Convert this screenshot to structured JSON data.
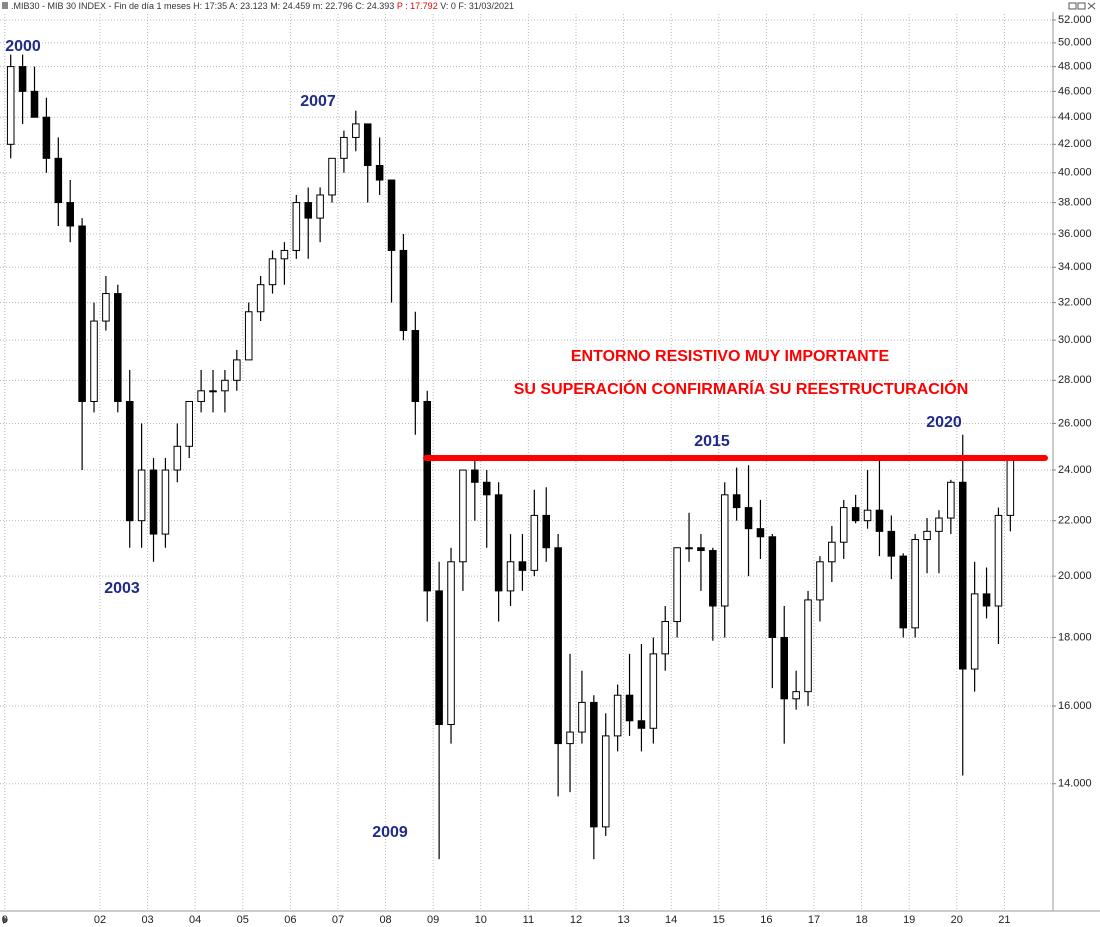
{
  "header": {
    "parts": [
      ".MIB30 - MIB 30 INDEX - Fin de día 1 meses",
      "H: 17:35",
      "A: 23.123",
      "M: 24.459",
      "m: 22.796",
      "C: 24.393",
      "P : 17.792",
      "V: 0",
      "F: 31/03/2021"
    ]
  },
  "chart_data": {
    "type": "candlestick",
    "log_scale": true,
    "grid": true,
    "up_color": "#ffffff",
    "down_color": "#000000",
    "line_color": "#000000",
    "x": [
      2000,
      2000.25,
      2000.5,
      2000.75,
      2001,
      2001.25,
      2001.5,
      2001.75,
      2002,
      2002.25,
      2002.5,
      2002.75,
      2003,
      2003.25,
      2003.5,
      2003.75,
      2004,
      2004.25,
      2004.5,
      2004.75,
      2005,
      2005.25,
      2005.5,
      2005.75,
      2006,
      2006.25,
      2006.5,
      2006.75,
      2007,
      2007.25,
      2007.5,
      2007.75,
      2008,
      2008.25,
      2008.5,
      2008.75,
      2009,
      2009.25,
      2009.5,
      2009.75,
      2010,
      2010.25,
      2010.5,
      2010.75,
      2011,
      2011.25,
      2011.5,
      2011.75,
      2012,
      2012.25,
      2012.5,
      2012.75,
      2013,
      2013.25,
      2013.5,
      2013.75,
      2014,
      2014.25,
      2014.5,
      2014.75,
      2015,
      2015.25,
      2015.5,
      2015.75,
      2016,
      2016.25,
      2016.5,
      2016.75,
      2017,
      2017.25,
      2017.5,
      2017.75,
      2018,
      2018.25,
      2018.5,
      2018.75,
      2019,
      2019.25,
      2019.5,
      2019.75,
      2020,
      2020.25,
      2020.5,
      2020.75,
      2021
    ],
    "open": [
      42000,
      48000,
      46000,
      44000,
      41000,
      38000,
      36500,
      27000,
      31000,
      32500,
      27000,
      22000,
      24000,
      21500,
      24000,
      25000,
      27000,
      27500,
      27500,
      28000,
      29000,
      31500,
      33000,
      34500,
      35000,
      38000,
      37000,
      38500,
      41000,
      42500,
      43500,
      40500,
      39500,
      35000,
      30500,
      27000,
      19500,
      15500,
      20500,
      24000,
      23500,
      23000,
      19500,
      20500,
      20200,
      22200,
      21000,
      15000,
      15300,
      16100,
      13000,
      15200,
      16300,
      15600,
      15400,
      17500,
      18500,
      21000,
      21000,
      20900,
      19000,
      23000,
      22500,
      21700,
      21400,
      18000,
      16200,
      16400,
      19200,
      20500,
      21200,
      22500,
      22000,
      22400,
      21600,
      20700,
      18300,
      21300,
      21600,
      22100,
      23500,
      17050,
      19400,
      19000,
      22200
    ],
    "high": [
      49000,
      49000,
      48000,
      45500,
      42500,
      39500,
      37000,
      32000,
      33500,
      33000,
      28500,
      26000,
      24500,
      24500,
      26000,
      27000,
      28500,
      28500,
      28500,
      29500,
      32000,
      33500,
      35000,
      35500,
      38500,
      39000,
      39000,
      41000,
      43000,
      44500,
      43500,
      42500,
      39500,
      36000,
      31500,
      27500,
      20500,
      21000,
      24000,
      24500,
      24000,
      23500,
      21500,
      21500,
      23200,
      23300,
      21500,
      17500,
      17000,
      16300,
      15800,
      16600,
      17500,
      17800,
      18000,
      19000,
      21000,
      22300,
      21500,
      21000,
      23500,
      24100,
      24200,
      22800,
      21500,
      19000,
      17000,
      19500,
      20700,
      21800,
      22800,
      23000,
      24000,
      24500,
      22200,
      20800,
      21500,
      22100,
      22400,
      23600,
      25500,
      20500,
      20300,
      22500,
      24500
    ],
    "low": [
      41000,
      43500,
      44000,
      40000,
      36500,
      35500,
      24000,
      26500,
      30500,
      26500,
      21000,
      21000,
      20500,
      21000,
      23500,
      24500,
      26500,
      26500,
      26500,
      27500,
      29000,
      31000,
      32500,
      33000,
      34500,
      34500,
      35500,
      38000,
      40000,
      41500,
      38000,
      38500,
      32000,
      30000,
      25500,
      18500,
      12300,
      15000,
      19500,
      22000,
      21000,
      18500,
      19000,
      19500,
      20000,
      20500,
      13700,
      13800,
      15000,
      12300,
      12800,
      14800,
      15200,
      14800,
      15000,
      17000,
      18000,
      20500,
      19500,
      17900,
      18000,
      22000,
      20000,
      20600,
      16500,
      15000,
      15900,
      16000,
      18500,
      19800,
      20600,
      21900,
      21700,
      20700,
      19900,
      18000,
      18000,
      20100,
      20100,
      21500,
      14200,
      16400,
      18600,
      17800,
      21600
    ],
    "close": [
      48000,
      46000,
      44000,
      41000,
      38000,
      36500,
      27000,
      31000,
      32500,
      27000,
      22000,
      24000,
      21500,
      24000,
      25000,
      27000,
      27500,
      27500,
      28000,
      29000,
      31500,
      33000,
      34500,
      35000,
      38000,
      37000,
      38500,
      41000,
      42500,
      43500,
      40500,
      39500,
      35000,
      30500,
      27000,
      19500,
      15500,
      20500,
      24000,
      23500,
      23000,
      19500,
      20500,
      20200,
      22200,
      21000,
      15000,
      15300,
      16100,
      13000,
      15200,
      16300,
      15600,
      15400,
      17500,
      18500,
      21000,
      21000,
      20900,
      19000,
      23000,
      22500,
      21700,
      21400,
      18000,
      16200,
      16400,
      19200,
      20500,
      21200,
      22500,
      22000,
      22400,
      21600,
      20700,
      18300,
      21300,
      21600,
      22100,
      23500,
      17050,
      19400,
      19000,
      22200,
      24400
    ],
    "xlim": [
      1999.9,
      2022.0
    ],
    "xticks": [
      {
        "value": 2000,
        "label": "0"
      },
      {
        "value": 2002,
        "label": "02"
      },
      {
        "value": 2003,
        "label": "03"
      },
      {
        "value": 2004,
        "label": "04"
      },
      {
        "value": 2005,
        "label": "05"
      },
      {
        "value": 2006,
        "label": "06"
      },
      {
        "value": 2007,
        "label": "07"
      },
      {
        "value": 2008,
        "label": "08"
      },
      {
        "value": 2009,
        "label": "09"
      },
      {
        "value": 2010,
        "label": "10"
      },
      {
        "value": 2011,
        "label": "11"
      },
      {
        "value": 2012,
        "label": "12"
      },
      {
        "value": 2013,
        "label": "13"
      },
      {
        "value": 2014,
        "label": "14"
      },
      {
        "value": 2015,
        "label": "15"
      },
      {
        "value": 2016,
        "label": "16"
      },
      {
        "value": 2017,
        "label": "17"
      },
      {
        "value": 2018,
        "label": "18"
      },
      {
        "value": 2019,
        "label": "19"
      },
      {
        "value": 2020,
        "label": "20"
      },
      {
        "value": 2021,
        "label": "21"
      }
    ],
    "ylim": [
      11270,
      52540
    ],
    "yticks": [
      {
        "value": 14000,
        "label": "14.000"
      },
      {
        "value": 16000,
        "label": "16.000"
      },
      {
        "value": 18000,
        "label": "18.000"
      },
      {
        "value": 20000,
        "label": "20.000"
      },
      {
        "value": 22000,
        "label": "22.000"
      },
      {
        "value": 24000,
        "label": "24.000"
      },
      {
        "value": 26000,
        "label": "26.000"
      },
      {
        "value": 28000,
        "label": "28.000"
      },
      {
        "value": 30000,
        "label": "30.000"
      },
      {
        "value": 32000,
        "label": "32.000"
      },
      {
        "value": 34000,
        "label": "34.000"
      },
      {
        "value": 36000,
        "label": "36.000"
      },
      {
        "value": 38000,
        "label": "38.000"
      },
      {
        "value": 40000,
        "label": "40.000"
      },
      {
        "value": 42000,
        "label": "42.000"
      },
      {
        "value": 44000,
        "label": "44.000"
      },
      {
        "value": 46000,
        "label": "46.000"
      },
      {
        "value": 48000,
        "label": "48.000"
      },
      {
        "value": 50000,
        "label": "50.000"
      },
      {
        "value": 52000,
        "label": "52.000"
      }
    ],
    "resistance": {
      "value": 24500,
      "color": "#ff0000"
    },
    "annotations": [
      "2000",
      "2003",
      "2007",
      "2009",
      "2015",
      "2020"
    ],
    "notes": [
      "ENTORNO RESISTIVO MUY IMPORTANTE",
      "SU SUPERACIÓN CONFIRMARÍA SU REESTRUCTURACIÓN"
    ]
  }
}
